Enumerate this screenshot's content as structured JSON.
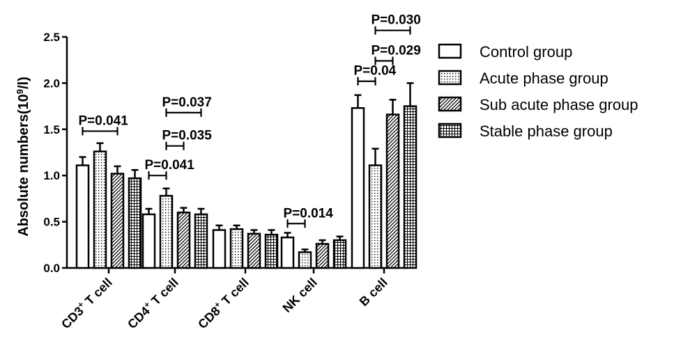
{
  "chart_data": {
    "type": "bar",
    "ylabel_main": "Absolute numbers(10",
    "ylabel_sup": "9",
    "ylabel_tail": "/l)",
    "ylim": [
      0,
      2.5
    ],
    "yticks": [
      "0.0",
      "0.5",
      "1.0",
      "1.5",
      "2.0",
      "2.5"
    ],
    "ytick_values": [
      0,
      0.5,
      1.0,
      1.5,
      2.0,
      2.5
    ],
    "grid": false,
    "legend_position": "right",
    "categories": [
      {
        "main": "CD3",
        "sup": "+",
        "tail": " T cell"
      },
      {
        "main": "CD4",
        "sup": "+",
        "tail": "  T cell"
      },
      {
        "main": "CD8",
        "sup": "+",
        "tail": "  T cell"
      },
      {
        "main": "NK cell",
        "sup": "",
        "tail": ""
      },
      {
        "main": "B cell",
        "sup": "",
        "tail": ""
      }
    ],
    "series": [
      {
        "name": "Control group",
        "pattern": "none",
        "values": [
          1.11,
          0.58,
          0.41,
          0.33,
          1.73
        ],
        "errors": [
          0.09,
          0.06,
          0.05,
          0.05,
          0.14
        ]
      },
      {
        "name": "Acute phase group",
        "pattern": "dots",
        "values": [
          1.26,
          0.78,
          0.42,
          0.17,
          1.11
        ],
        "errors": [
          0.09,
          0.08,
          0.04,
          0.03,
          0.18
        ]
      },
      {
        "name": "Sub acute phase group",
        "pattern": "diagonal",
        "values": [
          1.02,
          0.6,
          0.37,
          0.26,
          1.66
        ],
        "errors": [
          0.08,
          0.05,
          0.04,
          0.04,
          0.16
        ]
      },
      {
        "name": "Stable phase group",
        "pattern": "grid",
        "values": [
          0.97,
          0.58,
          0.36,
          0.3,
          1.75
        ],
        "errors": [
          0.09,
          0.06,
          0.05,
          0.04,
          0.25
        ]
      }
    ],
    "annotations": [
      {
        "text": "P=0.041",
        "category": 0,
        "from_series": 0,
        "to_series": 2,
        "y": 1.48
      },
      {
        "text": "P=0.041",
        "category": 1,
        "from_series": 0,
        "to_series": 1,
        "y": 1.0
      },
      {
        "text": "P=0.035",
        "category": 1,
        "from_series": 1,
        "to_series": 2,
        "y": 1.32
      },
      {
        "text": "P=0.037",
        "category": 1,
        "from_series": 1,
        "to_series": 3,
        "y": 1.68
      },
      {
        "text": "P=0.014",
        "category": 3,
        "from_series": 0,
        "to_series": 1,
        "y": 0.48
      },
      {
        "text": "P=0.04",
        "category": 4,
        "from_series": 0,
        "to_series": 1,
        "y": 2.02
      },
      {
        "text": "P=0.029",
        "category": 4,
        "from_series": 1,
        "to_series": 2,
        "y": 2.24
      },
      {
        "text": "P=0.030",
        "category": 4,
        "from_series": 1,
        "to_series": 3,
        "y": 2.57
      }
    ]
  }
}
